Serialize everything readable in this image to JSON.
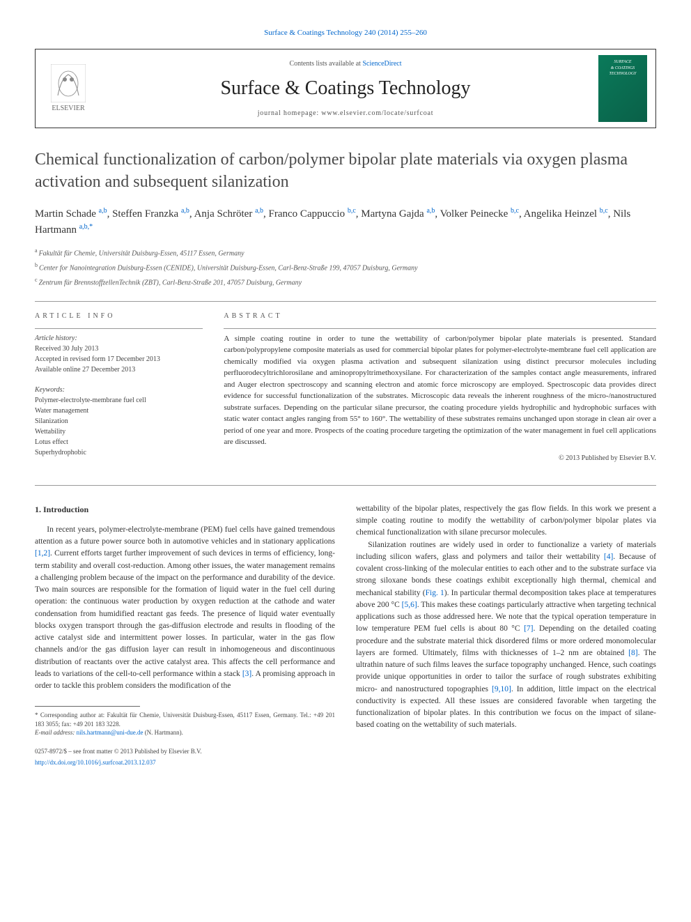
{
  "top_link": "Surface & Coatings Technology 240 (2014) 255–260",
  "header": {
    "contents_prefix": "Contents lists available at ",
    "contents_link": "ScienceDirect",
    "journal_title": "Surface & Coatings Technology",
    "homepage_prefix": "journal homepage: ",
    "homepage_url": "www.elsevier.com/locate/surfcoat",
    "elsevier_label": "ELSEVIER",
    "cover_line1": "SURFACE",
    "cover_line2": "& COATINGS",
    "cover_line3": "TECHNOLOGY"
  },
  "title": "Chemical functionalization of carbon/polymer bipolar plate materials via oxygen plasma activation and subsequent silanization",
  "authors": [
    {
      "name": "Martin Schade",
      "aff": "a,b"
    },
    {
      "name": "Steffen Franzka",
      "aff": "a,b"
    },
    {
      "name": "Anja Schröter",
      "aff": "a,b"
    },
    {
      "name": "Franco Cappuccio",
      "aff": "b,c"
    },
    {
      "name": "Martyna Gajda",
      "aff": "a,b"
    },
    {
      "name": "Volker Peinecke",
      "aff": "b,c"
    },
    {
      "name": "Angelika Heinzel",
      "aff": "b,c"
    },
    {
      "name": "Nils Hartmann",
      "aff": "a,b,",
      "corr": "*"
    }
  ],
  "affiliations": [
    {
      "key": "a",
      "text": "Fakultät für Chemie, Universität Duisburg-Essen, 45117 Essen, Germany"
    },
    {
      "key": "b",
      "text": "Center for Nanointegration Duisburg-Essen (CENIDE), Universität Duisburg-Essen, Carl-Benz-Straße 199, 47057 Duisburg, Germany"
    },
    {
      "key": "c",
      "text": "Zentrum für BrennstoffzellenTechnik (ZBT), Carl-Benz-Straße 201, 47057 Duisburg, Germany"
    }
  ],
  "info": {
    "heading": "article info",
    "history_label": "Article history:",
    "received": "Received 30 July 2013",
    "accepted": "Accepted in revised form 17 December 2013",
    "online": "Available online 27 December 2013",
    "keywords_label": "Keywords:",
    "keywords": [
      "Polymer-electrolyte-membrane fuel cell",
      "Water management",
      "Silanization",
      "Wettability",
      "Lotus effect",
      "Superhydrophobic"
    ]
  },
  "abstract": {
    "heading": "abstract",
    "text": "A simple coating routine in order to tune the wettability of carbon/polymer bipolar plate materials is presented. Standard carbon/polypropylene composite materials as used for commercial bipolar plates for polymer-electrolyte-membrane fuel cell application are chemically modified via oxygen plasma activation and subsequent silanization using distinct precursor molecules including perfluorodecyltrichlorosilane and aminopropyltrimethoxysilane. For characterization of the samples contact angle measurements, infrared and Auger electron spectroscopy and scanning electron and atomic force microscopy are employed. Spectroscopic data provides direct evidence for successful functionalization of the substrates. Microscopic data reveals the inherent roughness of the micro-/nanostructured substrate surfaces. Depending on the particular silane precursor, the coating procedure yields hydrophilic and hydrophobic surfaces with static water contact angles ranging from 55° to 160°. The wettability of these substrates remains unchanged upon storage in clean air over a period of one year and more. Prospects of the coating procedure targeting the optimization of the water management in fuel cell applications are discussed.",
    "copyright": "© 2013 Published by Elsevier B.V."
  },
  "intro": {
    "heading": "1. Introduction",
    "col1_p1_a": "In recent years, polymer-electrolyte-membrane (PEM) fuel cells have gained tremendous attention as a future power source both in automotive vehicles and in stationary applications ",
    "cite1": "[1,2]",
    "col1_p1_b": ". Current efforts target further improvement of such devices in terms of efficiency, long-term stability and overall cost-reduction. Among other issues, the water management remains a challenging problem because of the impact on the performance and durability of the device. Two main sources are responsible for the formation of liquid water in the fuel cell during operation: the continuous water production by oxygen reduction at the cathode and water condensation from humidified reactant gas feeds. The presence of liquid water eventually blocks oxygen transport through the gas-diffusion electrode and results in flooding of the active catalyst side and intermittent power losses. In particular, water in the gas flow channels and/or the gas diffusion layer can result in inhomogeneous and discontinuous distribution of reactants over the active catalyst area. This affects the cell performance and leads to variations of the cell-to-cell performance within a stack ",
    "cite2": "[3]",
    "col1_p1_c": ". A promising approach in order to tackle this problem considers the modification of the",
    "col2_p1": "wettability of the bipolar plates, respectively the gas flow fields. In this work we present a simple coating routine to modify the wettability of carbon/polymer bipolar plates via chemical functionalization with silane precursor molecules.",
    "col2_p2_a": "Silanization routines are widely used in order to functionalize a variety of materials including silicon wafers, glass and polymers and tailor their wettability ",
    "cite3": "[4]",
    "col2_p2_b": ". Because of covalent cross-linking of the molecular entities to each other and to the substrate surface via strong siloxane bonds these coatings exhibit exceptionally high thermal, chemical and mechanical stability (",
    "fig1": "Fig. 1",
    "col2_p2_c": "). In particular thermal decomposition takes place at temperatures above 200 °C ",
    "cite4": "[5,6]",
    "col2_p2_d": ". This makes these coatings particularly attractive when targeting technical applications such as those addressed here. We note that the typical operation temperature in low temperature PEM fuel cells is about 80 °C ",
    "cite5": "[7]",
    "col2_p2_e": ". Depending on the detailed coating procedure and the substrate material thick disordered films or more ordered monomolecular layers are formed. Ultimately, films with thicknesses of 1–2 nm are obtained ",
    "cite6": "[8]",
    "col2_p2_f": ". The ultrathin nature of such films leaves the surface topography unchanged. Hence, such coatings provide unique opportunities in order to tailor the surface of rough substrates exhibiting micro- and nanostructured topographies ",
    "cite7": "[9,10]",
    "col2_p2_g": ". In addition, little impact on the electrical conductivity is expected. All these issues are considered favorable when targeting the functionalization of bipolar plates. In this contribution we focus on the impact of silane-based coating on the wettability of such materials."
  },
  "footnote": {
    "corr": "* Corresponding author at: Fakultät für Chemie, Universität Duisburg-Essen, 45117 Essen, Germany. Tel.: +49 201 183 3055; fax: +49 201 183 3228.",
    "email_label": "E-mail address: ",
    "email": "nils.hartmann@uni-due.de",
    "email_suffix": " (N. Hartmann)."
  },
  "bottom": {
    "issn": "0257-8972/$ – see front matter © 2013 Published by Elsevier B.V.",
    "doi": "http://dx.doi.org/10.1016/j.surfcoat.2013.12.037"
  },
  "colors": {
    "link": "#0066cc",
    "text": "#333333",
    "muted": "#555555",
    "cover_bg": "#0a7a5a"
  }
}
